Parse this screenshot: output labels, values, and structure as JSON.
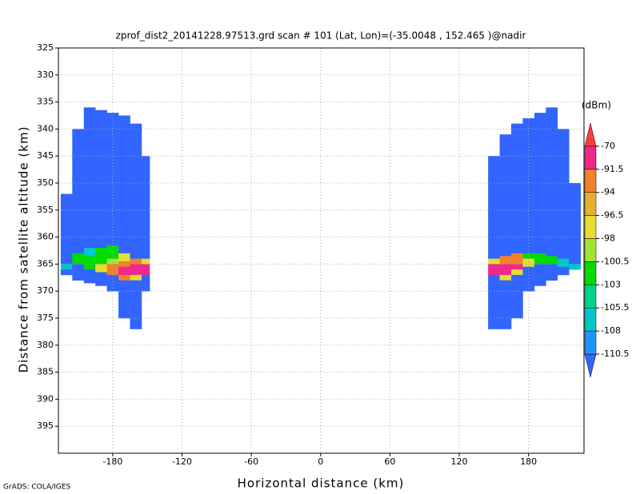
{
  "chart_data": {
    "type": "heatmap",
    "title": "zprof_dist2_20141228.97513.grd   scan # 101   (Lat, Lon)=(-35.0048 , 152.465 )@nadir",
    "xlabel": "Horizontal distance (km)",
    "ylabel": "Distance from satellite altitude (km)",
    "footer": "GrADS: COLA/IGES",
    "colorbar_label": "(dBm)",
    "xlim": [
      -227,
      228
    ],
    "ylim": [
      325,
      400
    ],
    "xticks": [
      -180,
      -120,
      -60,
      0,
      60,
      120,
      180
    ],
    "yticks": [
      325,
      330,
      335,
      340,
      345,
      350,
      355,
      360,
      365,
      370,
      375,
      380,
      385,
      390,
      395
    ],
    "grid": true,
    "levels": [
      -110.5,
      -108,
      -105.5,
      -103,
      -100.5,
      -98,
      -96.5,
      -94,
      -91.5,
      -70
    ],
    "colors": [
      "#3264ff",
      "#1e96ff",
      "#00c8c8",
      "#00d28c",
      "#00dc00",
      "#a0e632",
      "#e6dc32",
      "#e6af2d",
      "#f08228",
      "#f0288c",
      "#fa3c3c"
    ],
    "cells": [
      [
        -225,
        -215,
        352,
        365,
        -112
      ],
      [
        -225,
        -215,
        365,
        366,
        -107
      ],
      [
        -225,
        -215,
        366,
        367,
        -112
      ],
      [
        -215,
        -205,
        340,
        363,
        -112
      ],
      [
        -215,
        -205,
        363,
        365,
        -102
      ],
      [
        -215,
        -205,
        365,
        368,
        -112
      ],
      [
        -205,
        -195,
        336,
        362,
        -112
      ],
      [
        -205,
        -195,
        362,
        363.5,
        -107
      ],
      [
        -205,
        -195,
        363.5,
        366,
        -102
      ],
      [
        -205,
        -195,
        366,
        368.5,
        -112
      ],
      [
        -195,
        -185,
        336.5,
        362,
        -112
      ],
      [
        -195,
        -185,
        362,
        365,
        -102
      ],
      [
        -195,
        -185,
        365,
        366.5,
        -97
      ],
      [
        -195,
        -185,
        366.5,
        369,
        -112
      ],
      [
        -185,
        -175,
        337,
        361.5,
        -112
      ],
      [
        -185,
        -175,
        361.5,
        364,
        -102
      ],
      [
        -185,
        -175,
        364,
        365,
        -99
      ],
      [
        -185,
        -175,
        365,
        367,
        -93
      ],
      [
        -185,
        -175,
        367,
        370,
        -112
      ],
      [
        -175,
        -165,
        337.5,
        363,
        -112
      ],
      [
        -175,
        -165,
        363,
        364.5,
        -97
      ],
      [
        -175,
        -165,
        364.5,
        365.5,
        -93
      ],
      [
        -175,
        -165,
        365.5,
        367,
        -85
      ],
      [
        -175,
        -165,
        367,
        368,
        -93
      ],
      [
        -175,
        -165,
        368,
        375,
        -112
      ],
      [
        -165,
        -155,
        339,
        364,
        -112
      ],
      [
        -165,
        -155,
        364,
        365,
        -93
      ],
      [
        -165,
        -155,
        365,
        367,
        -85
      ],
      [
        -165,
        -155,
        367,
        368,
        -97
      ],
      [
        -165,
        -155,
        368,
        377,
        -112
      ],
      [
        -155,
        -148,
        345,
        364,
        -112
      ],
      [
        -155,
        -148,
        364,
        365,
        -97
      ],
      [
        -155,
        -148,
        365,
        367,
        -85
      ],
      [
        -155,
        -148,
        367,
        370,
        -112
      ],
      [
        145,
        155,
        345,
        364,
        -112
      ],
      [
        145,
        155,
        364,
        365,
        -97
      ],
      [
        145,
        155,
        365,
        367,
        -85
      ],
      [
        145,
        155,
        367,
        377,
        -112
      ],
      [
        155,
        165,
        341,
        363.5,
        -112
      ],
      [
        155,
        165,
        363.5,
        365,
        -93
      ],
      [
        155,
        165,
        365,
        367,
        -85
      ],
      [
        155,
        165,
        367,
        368,
        -97
      ],
      [
        155,
        165,
        368,
        377,
        -112
      ],
      [
        165,
        175,
        339,
        363,
        -112
      ],
      [
        165,
        175,
        363,
        365,
        -93
      ],
      [
        165,
        175,
        365,
        366,
        -85
      ],
      [
        165,
        175,
        366,
        367,
        -97
      ],
      [
        165,
        175,
        367,
        375,
        -112
      ],
      [
        175,
        185,
        338,
        363,
        -112
      ],
      [
        175,
        185,
        363,
        364,
        -102
      ],
      [
        175,
        185,
        364,
        365.5,
        -97
      ],
      [
        175,
        185,
        365.5,
        370,
        -112
      ],
      [
        185,
        195,
        337,
        363,
        -112
      ],
      [
        185,
        195,
        363,
        365,
        -102
      ],
      [
        185,
        195,
        365,
        369,
        -112
      ],
      [
        195,
        205,
        336,
        363.5,
        -112
      ],
      [
        195,
        205,
        363.5,
        365,
        -102
      ],
      [
        195,
        205,
        365,
        368,
        -112
      ],
      [
        205,
        215,
        340,
        364,
        -112
      ],
      [
        205,
        215,
        364,
        365.5,
        -107
      ],
      [
        205,
        215,
        365.5,
        367,
        -112
      ],
      [
        215,
        225,
        350,
        365,
        -112
      ],
      [
        215,
        225,
        365,
        366,
        -107
      ]
    ]
  }
}
